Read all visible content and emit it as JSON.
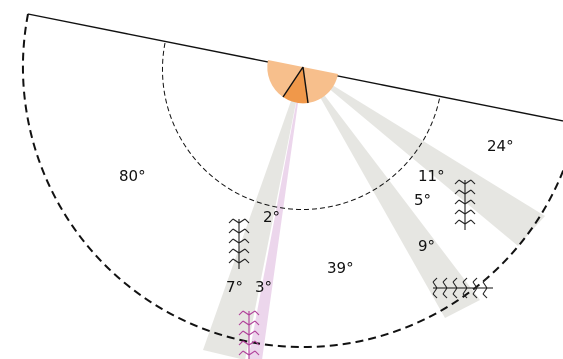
{
  "colors": {
    "sector_fill": "#e6e6e2",
    "highlight_fill": "#ecd6ec",
    "molecule": "#222222",
    "molecule_highlight": "#b0409a",
    "pivot_light": "#f7bf8c",
    "pivot_dark": "#f0984a",
    "outline": "#111111"
  },
  "angles": {
    "a80": "80°",
    "a2": "2°",
    "a7": "7°",
    "a3": "3°",
    "a39": "39°",
    "a11": "11°",
    "a5": "5°",
    "a9": "9°",
    "a24": "24°"
  },
  "icons": {
    "molecule": "branched-chain-molecule-icon"
  }
}
